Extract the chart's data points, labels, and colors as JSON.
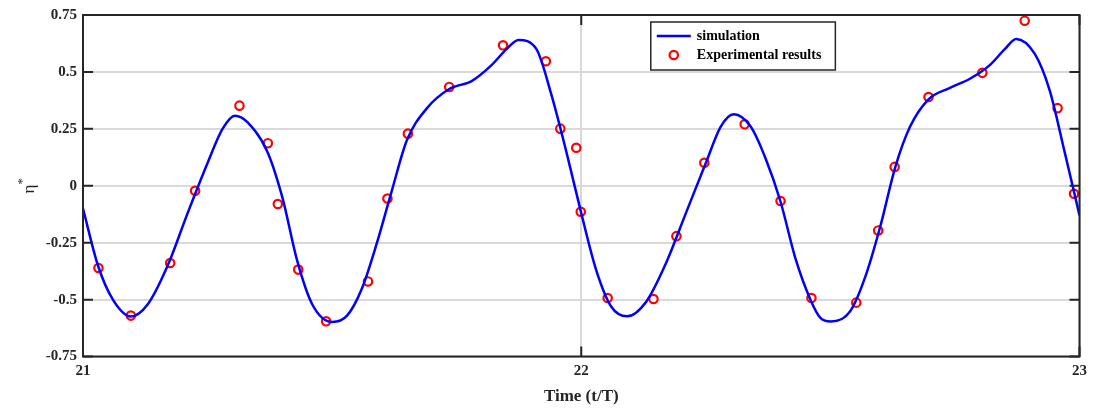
{
  "chart_data": {
    "type": "line",
    "xlabel": "Time (t/T)",
    "ylabel": "η$^{*}$",
    "xlim": [
      21,
      23
    ],
    "xticks": [
      21,
      22,
      23
    ],
    "ylim": [
      -0.75,
      0.75
    ],
    "yticks": [
      -0.75,
      -0.5,
      -0.25,
      0,
      0.25,
      0.5,
      0.75
    ],
    "grid": true,
    "legend": "top right",
    "series": [
      {
        "name": "simulation",
        "color": "#0000ff",
        "marker": "none",
        "line_style": "solid",
        "x": [
          21.0,
          21.03,
          21.06,
          21.096,
          21.13,
          21.17,
          21.21,
          21.25,
          21.28,
          21.305,
          21.33,
          21.37,
          21.4,
          21.43,
          21.46,
          21.5,
          21.53,
          21.56,
          21.59,
          21.62,
          21.65,
          21.69,
          21.735,
          21.78,
          21.82,
          21.85,
          21.874,
          21.91,
          21.94,
          21.97,
          22.0,
          22.03,
          22.06,
          22.092,
          22.13,
          22.17,
          22.21,
          22.25,
          22.28,
          22.306,
          22.34,
          22.37,
          22.4,
          22.43,
          22.46,
          22.48,
          22.501,
          22.54,
          22.57,
          22.6,
          22.63,
          22.66,
          22.697,
          22.74,
          22.78,
          22.82,
          22.85,
          22.873,
          22.91,
          22.94,
          22.97,
          23.0
        ],
        "values": [
          -0.1,
          -0.35,
          -0.5,
          -0.574,
          -0.52,
          -0.35,
          -0.12,
          0.1,
          0.25,
          0.308,
          0.28,
          0.15,
          -0.05,
          -0.33,
          -0.52,
          -0.598,
          -0.57,
          -0.45,
          -0.25,
          -0.02,
          0.2,
          0.34,
          0.425,
          0.46,
          0.53,
          0.6,
          0.64,
          0.6,
          0.4,
          0.15,
          -0.12,
          -0.37,
          -0.53,
          -0.573,
          -0.51,
          -0.34,
          -0.12,
          0.1,
          0.26,
          0.314,
          0.26,
          0.12,
          -0.07,
          -0.32,
          -0.5,
          -0.58,
          -0.596,
          -0.55,
          -0.4,
          -0.18,
          0.08,
          0.26,
          0.38,
          0.43,
          0.47,
          0.53,
          0.6,
          0.645,
          0.58,
          0.42,
          0.15,
          -0.13
        ]
      },
      {
        "name": "Experimental results",
        "type": "scatter",
        "color": "#ff0000",
        "marker": "circle",
        "x": [
          21.031,
          21.096,
          21.175,
          21.225,
          21.314,
          21.371,
          21.391,
          21.432,
          21.488,
          21.572,
          21.611,
          21.652,
          21.735,
          21.843,
          21.929,
          21.958,
          21.99,
          21.999,
          22.053,
          22.145,
          22.191,
          22.247,
          22.328,
          22.4,
          22.462,
          22.552,
          22.596,
          22.629,
          22.697,
          22.805,
          22.89,
          22.956,
          22.989
        ],
        "values": [
          -0.361,
          -0.57,
          -0.339,
          -0.022,
          0.352,
          0.187,
          -0.08,
          -0.368,
          -0.595,
          -0.42,
          -0.056,
          0.229,
          0.434,
          0.617,
          0.547,
          0.251,
          0.167,
          -0.114,
          -0.493,
          -0.497,
          -0.221,
          0.101,
          0.27,
          -0.067,
          -0.493,
          -0.513,
          -0.196,
          0.083,
          0.39,
          0.496,
          0.725,
          0.341,
          -0.035
        ]
      }
    ]
  }
}
